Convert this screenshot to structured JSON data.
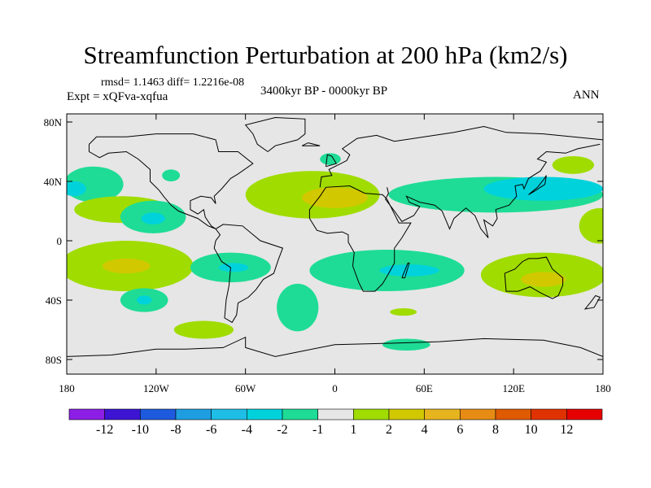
{
  "title": "Streamfunction Perturbation at 200 hPa (km2/s)",
  "left_string_top": "rmsd= 1.1463 diff= 1.2216e-08",
  "left_string": "Expt = xQFva-xqfua",
  "center_string": "3400kyr BP - 0000kyr BP",
  "right_string": "ANN",
  "chart_data": {
    "type": "heatmap",
    "projection": "cylindrical-equidistant",
    "lon_range": [
      -180,
      180
    ],
    "lat_range": [
      -90,
      85
    ],
    "x_ticks": [
      {
        "value": -180,
        "label": "180"
      },
      {
        "value": -120,
        "label": "120W"
      },
      {
        "value": -60,
        "label": "60W"
      },
      {
        "value": 0,
        "label": "0"
      },
      {
        "value": 60,
        "label": "60E"
      },
      {
        "value": 120,
        "label": "120E"
      },
      {
        "value": 180,
        "label": "180"
      }
    ],
    "y_ticks": [
      {
        "value": 80,
        "label": "80N"
      },
      {
        "value": 40,
        "label": "40N"
      },
      {
        "value": 0,
        "label": "0"
      },
      {
        "value": -40,
        "label": "40S"
      },
      {
        "value": -80,
        "label": "80S"
      }
    ],
    "colorbar": {
      "labels": [
        "-12",
        "-10",
        "-8",
        "-6",
        "-4",
        "-2",
        "-1",
        "1",
        "2",
        "4",
        "6",
        "8",
        "10",
        "12"
      ],
      "colors": [
        "#8c1ee6",
        "#3c14d2",
        "#1e5ade",
        "#1e9ee0",
        "#1ebee6",
        "#00d2dc",
        "#1edc96",
        "#e6e6e6",
        "#a0dc00",
        "#d2c800",
        "#e6b41e",
        "#e68c14",
        "#e05a00",
        "#e03200",
        "#e60000"
      ]
    },
    "anomalies": [
      {
        "lon": -162,
        "lat": 38,
        "dlon": 20,
        "dlat": 12,
        "bin": 6
      },
      {
        "lon": -175,
        "lat": 35,
        "dlon": 8,
        "dlat": 5,
        "bin": 5
      },
      {
        "lon": -143,
        "lat": 21,
        "dlon": 32,
        "dlat": 9,
        "bin": 8
      },
      {
        "lon": -122,
        "lat": 16,
        "dlon": 22,
        "dlat": 11,
        "bin": 6
      },
      {
        "lon": -122,
        "lat": 15,
        "dlon": 8,
        "dlat": 4,
        "bin": 5
      },
      {
        "lon": -110,
        "lat": 44,
        "dlon": 6,
        "dlat": 4,
        "bin": 6
      },
      {
        "lon": -15,
        "lat": 31,
        "dlon": 45,
        "dlat": 16,
        "bin": 8
      },
      {
        "lon": 0,
        "lat": 29,
        "dlon": 22,
        "dlat": 7,
        "bin": 9
      },
      {
        "lon": -3,
        "lat": 55,
        "dlon": 7,
        "dlat": 4,
        "bin": 6
      },
      {
        "lon": 108,
        "lat": 31,
        "dlon": 72,
        "dlat": 12,
        "bin": 6
      },
      {
        "lon": 140,
        "lat": 35,
        "dlon": 40,
        "dlat": 8,
        "bin": 5
      },
      {
        "lon": 160,
        "lat": 51,
        "dlon": 14,
        "dlat": 6,
        "bin": 8
      },
      {
        "lon": 178,
        "lat": 10,
        "dlon": 14,
        "dlat": 12,
        "bin": 8
      },
      {
        "lon": -140,
        "lat": -17,
        "dlon": 45,
        "dlat": 17,
        "bin": 8
      },
      {
        "lon": -140,
        "lat": -17,
        "dlon": 16,
        "dlat": 5,
        "bin": 9
      },
      {
        "lon": -128,
        "lat": -40,
        "dlon": 16,
        "dlat": 8,
        "bin": 6
      },
      {
        "lon": -128,
        "lat": -40,
        "dlon": 5,
        "dlat": 3,
        "bin": 5
      },
      {
        "lon": -70,
        "lat": -18,
        "dlon": 27,
        "dlat": 10,
        "bin": 6
      },
      {
        "lon": -68,
        "lat": -18,
        "dlon": 10,
        "dlat": 3,
        "bin": 5
      },
      {
        "lon": 35,
        "lat": -20,
        "dlon": 52,
        "dlat": 14,
        "bin": 6
      },
      {
        "lon": -25,
        "lat": -45,
        "dlon": 14,
        "dlat": 16,
        "bin": 6
      },
      {
        "lon": 50,
        "lat": -20,
        "dlon": 20,
        "dlat": 4,
        "bin": 5
      },
      {
        "lon": 140,
        "lat": -23,
        "dlon": 42,
        "dlat": 15,
        "bin": 8
      },
      {
        "lon": 140,
        "lat": -26,
        "dlon": 15,
        "dlat": 5,
        "bin": 9
      },
      {
        "lon": 46,
        "lat": -48,
        "dlon": 9,
        "dlat": 2.5,
        "bin": 8
      },
      {
        "lon": 48,
        "lat": -70,
        "dlon": 16,
        "dlat": 4,
        "bin": 6
      },
      {
        "lon": -88,
        "lat": -60,
        "dlon": 20,
        "dlat": 6,
        "bin": 8
      }
    ]
  }
}
